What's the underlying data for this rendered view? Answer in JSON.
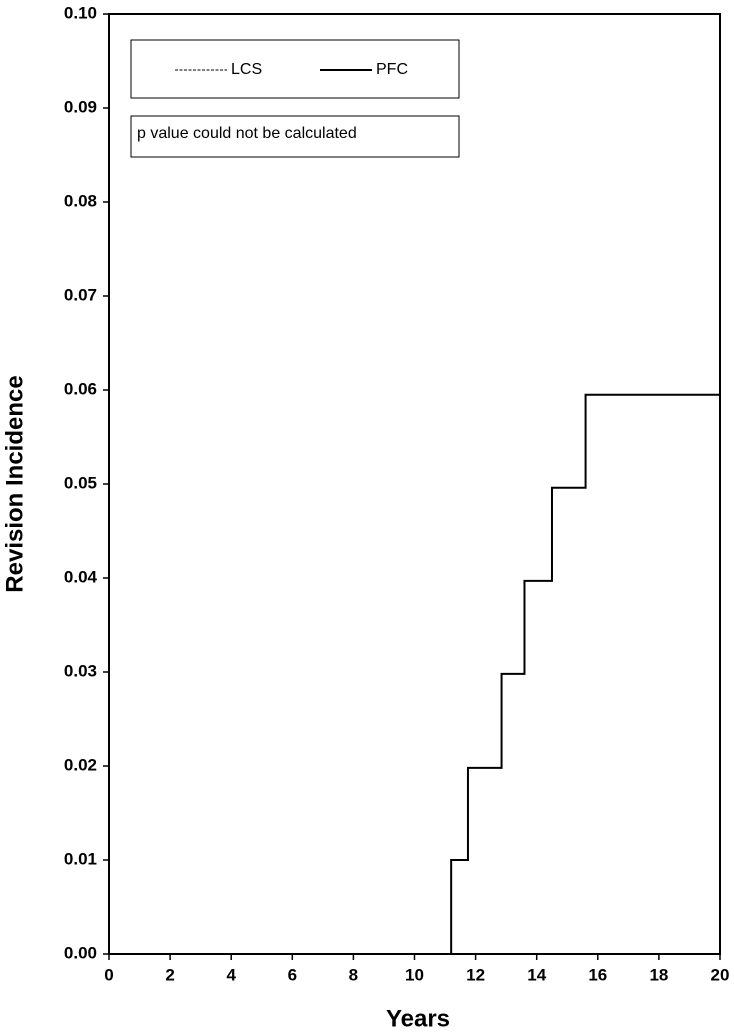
{
  "chart_data": {
    "type": "line",
    "x_label": "Years",
    "y_label": "Revision Incidence",
    "annotation": "p value could not be calculated",
    "x": [
      11.2,
      11.2,
      11.75,
      11.75,
      12.85,
      12.85,
      13.6,
      13.6,
      14.5,
      14.5,
      15.6,
      15.6,
      20
    ],
    "series": [
      {
        "name": "LCS",
        "color": "#000000",
        "dash": true,
        "values": [
          null,
          null,
          null,
          null,
          null,
          null,
          null,
          null,
          null,
          null,
          null,
          null,
          null
        ]
      },
      {
        "name": "PFC",
        "color": "#000000",
        "dash": false,
        "values": [
          0,
          0.01,
          0.01,
          0.0198,
          0.0198,
          0.0298,
          0.0298,
          0.0397,
          0.0397,
          0.0496,
          0.0496,
          0.0595,
          0.0595
        ]
      }
    ],
    "xlim": [
      0,
      20
    ],
    "xticks": [
      0,
      2,
      4,
      6,
      8,
      10,
      12,
      14,
      16,
      18,
      20
    ],
    "ylim": [
      0,
      0.1
    ],
    "yticks": [
      {
        "value": 0,
        "label": "0.00"
      },
      {
        "value": 0.01,
        "label": "0.01"
      },
      {
        "value": 0.02,
        "label": "0.02"
      },
      {
        "value": 0.03,
        "label": "0.03"
      },
      {
        "value": 0.04,
        "label": "0.04"
      },
      {
        "value": 0.05,
        "label": "0.05"
      },
      {
        "value": 0.06,
        "label": "0.06"
      },
      {
        "value": 0.07,
        "label": "0.07"
      },
      {
        "value": 0.08,
        "label": "0.08"
      },
      {
        "value": 0.09,
        "label": "0.09"
      },
      {
        "value": 0.1,
        "label": "0.10"
      }
    ],
    "grid": false,
    "legend": "top-left"
  }
}
